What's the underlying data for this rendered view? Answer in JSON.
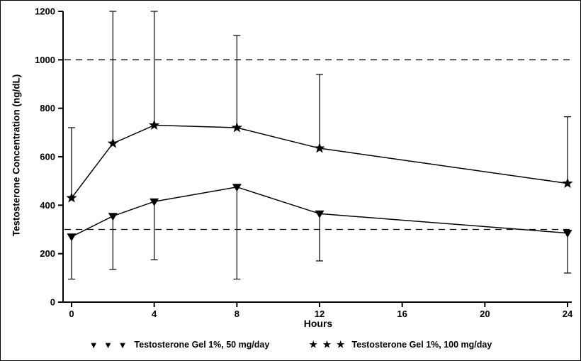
{
  "chart_data": {
    "type": "line",
    "title": "",
    "xlabel": "Hours",
    "ylabel": "Testosterone Concentration (ng/dL)",
    "xlim": [
      0,
      24
    ],
    "ylim": [
      0,
      1200
    ],
    "x_ticks": [
      0,
      4,
      8,
      12,
      16,
      20,
      24
    ],
    "y_ticks": [
      0,
      200,
      400,
      600,
      800,
      1000,
      1200
    ],
    "grid": false,
    "legend_position": "bottom",
    "reference_lines": [
      {
        "y": 300,
        "style": "dashed"
      },
      {
        "y": 1000,
        "style": "dashed"
      }
    ],
    "series": [
      {
        "name": "Testosterone Gel 1%, 50 mg/day",
        "marker": "triangle-down",
        "x": [
          0,
          2,
          4,
          8,
          12,
          24
        ],
        "y": [
          270,
          355,
          415,
          475,
          365,
          285
        ],
        "error_low": [
          95,
          135,
          175,
          95,
          170,
          120
        ]
      },
      {
        "name": "Testosterone Gel 1%, 100 mg/day",
        "marker": "star",
        "x": [
          0,
          2,
          4,
          8,
          12,
          24
        ],
        "y": [
          430,
          655,
          730,
          720,
          635,
          490
        ],
        "error_high": [
          720,
          1200,
          1200,
          1100,
          940,
          765
        ]
      }
    ],
    "colors": {
      "line": "#000000",
      "background": "#ffffff"
    }
  },
  "legend": {
    "items": [
      {
        "icon": "triangle-down-icon",
        "glyphs": "▼ ▼ ▼"
      },
      {
        "icon": "star-icon",
        "glyphs": "★ ★ ★"
      }
    ]
  }
}
